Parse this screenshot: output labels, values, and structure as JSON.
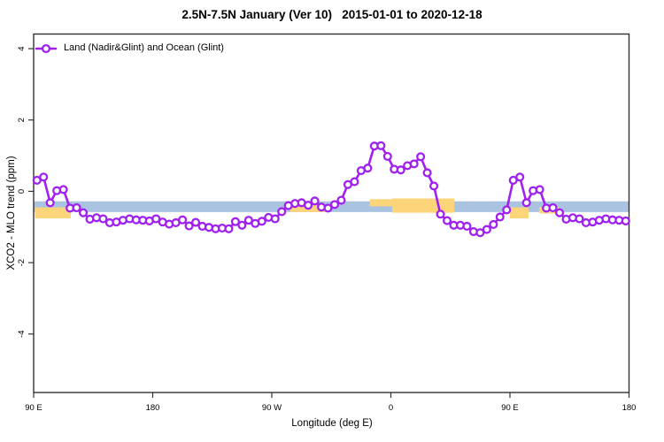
{
  "chart_data": {
    "type": "line",
    "title": "2.5N-7.5N January (Ver 10)   2015-01-01 to 2020-12-18",
    "xlabel": "Longitude (deg E)",
    "ylabel": "XCO2 - MLO trend (ppm)",
    "x_axis": {
      "min": 90,
      "max": 540,
      "ticks": [
        {
          "value": 90,
          "label": "90 E"
        },
        {
          "value": 180,
          "label": "180"
        },
        {
          "value": 270,
          "label": "90 W"
        },
        {
          "value": 360,
          "label": "0"
        },
        {
          "value": 450,
          "label": "90 E"
        },
        {
          "value": 540,
          "label": "180"
        }
      ]
    },
    "y_axis": {
      "min": -5.64,
      "max": 4.41,
      "ticks": [
        {
          "value": -4,
          "label": "-4"
        },
        {
          "value": -2,
          "label": "-2"
        },
        {
          "value": 0,
          "label": "0"
        },
        {
          "value": 2,
          "label": "2"
        },
        {
          "value": 4,
          "label": "4"
        }
      ]
    },
    "legend": {
      "position": "top-left",
      "entries": [
        {
          "label": "Land (Nadir&Glint) and Ocean (Glint)",
          "color": "#a020f0",
          "marker": "open-circle"
        }
      ]
    },
    "bands": [
      {
        "name": "blue-band",
        "color": "#a9c3e0",
        "x_from": 90,
        "x_to": 540,
        "y_from": -0.58,
        "y_to": -0.28
      },
      {
        "name": "orange-patch",
        "color": "#fcd47a",
        "x_from": 91,
        "x_to": 118,
        "y_from": -0.76,
        "y_to": -0.45
      },
      {
        "name": "orange-patch",
        "color": "#fcd47a",
        "x_from": 284,
        "x_to": 310,
        "y_from": -0.58,
        "y_to": -0.38
      },
      {
        "name": "orange-patch",
        "color": "#fcd47a",
        "x_from": 344,
        "x_to": 361,
        "y_from": -0.42,
        "y_to": -0.22
      },
      {
        "name": "orange-patch",
        "color": "#fcd47a",
        "x_from": 361,
        "x_to": 408,
        "y_from": -0.6,
        "y_to": -0.2
      },
      {
        "name": "orange-patch",
        "color": "#fcd47a",
        "x_from": 450,
        "x_to": 464,
        "y_from": -0.76,
        "y_to": -0.45
      },
      {
        "name": "orange-patch",
        "color": "#fcd47a",
        "x_from": 472,
        "x_to": 487,
        "y_from": -0.62,
        "y_to": -0.45
      }
    ],
    "series": [
      {
        "name": "Land (Nadir&Glint) and Ocean (Glint)",
        "color": "#a020f0",
        "marker": "open-circle",
        "x": [
          92.5,
          97.5,
          102.5,
          107.5,
          112.5,
          117.5,
          122.5,
          127.5,
          132.5,
          137.5,
          142.5,
          147.5,
          152.5,
          157.5,
          162.5,
          167.5,
          172.5,
          177.5,
          182.5,
          187.5,
          192.5,
          197.5,
          202.5,
          207.5,
          212.5,
          217.5,
          222.5,
          227.5,
          232.5,
          237.5,
          242.5,
          247.5,
          252.5,
          257.5,
          262.5,
          267.5,
          272.5,
          277.5,
          282.5,
          287.5,
          292.5,
          297.5,
          302.5,
          307.5,
          312.5,
          317.5,
          322.5,
          327.5,
          332.5,
          337.5,
          342.5,
          347.5,
          352.5,
          357.5,
          362.5,
          367.5,
          372.5,
          377.5,
          382.5,
          387.5,
          392.5,
          397.5,
          402.5,
          407.5,
          412.5,
          417.5,
          422.5,
          427.5,
          432.5,
          437.5,
          442.5,
          447.5,
          452.5,
          457.5,
          462.5,
          467.5,
          472.5,
          477.5,
          482.5,
          487.5,
          492.5,
          497.5,
          502.5,
          507.5,
          512.5,
          517.5,
          522.5,
          527.5,
          532.5,
          537.5
        ],
        "y": [
          0.31,
          0.4,
          -0.32,
          0.02,
          0.05,
          -0.47,
          -0.46,
          -0.6,
          -0.78,
          -0.74,
          -0.77,
          -0.88,
          -0.86,
          -0.81,
          -0.77,
          -0.8,
          -0.81,
          -0.83,
          -0.77,
          -0.86,
          -0.92,
          -0.88,
          -0.8,
          -0.97,
          -0.87,
          -0.98,
          -1.01,
          -1.05,
          -1.03,
          -1.05,
          -0.85,
          -0.95,
          -0.81,
          -0.9,
          -0.84,
          -0.73,
          -0.77,
          -0.57,
          -0.4,
          -0.34,
          -0.32,
          -0.39,
          -0.27,
          -0.44,
          -0.47,
          -0.37,
          -0.25,
          0.19,
          0.27,
          0.58,
          0.65,
          1.27,
          1.28,
          0.98,
          0.62,
          0.6,
          0.72,
          0.77,
          0.97,
          0.52,
          0.15,
          -0.64,
          -0.82,
          -0.95,
          -0.95,
          -0.98,
          -1.13,
          -1.16,
          -1.07,
          -0.93,
          -0.72,
          -0.52,
          0.31,
          0.4,
          -0.32,
          0.02,
          0.05,
          -0.47,
          -0.46,
          -0.6,
          -0.78,
          -0.74,
          -0.77,
          -0.88,
          -0.86,
          -0.81,
          -0.77,
          -0.8,
          -0.81,
          -0.83
        ]
      }
    ],
    "grid": "off",
    "frame_color": "#333333"
  }
}
